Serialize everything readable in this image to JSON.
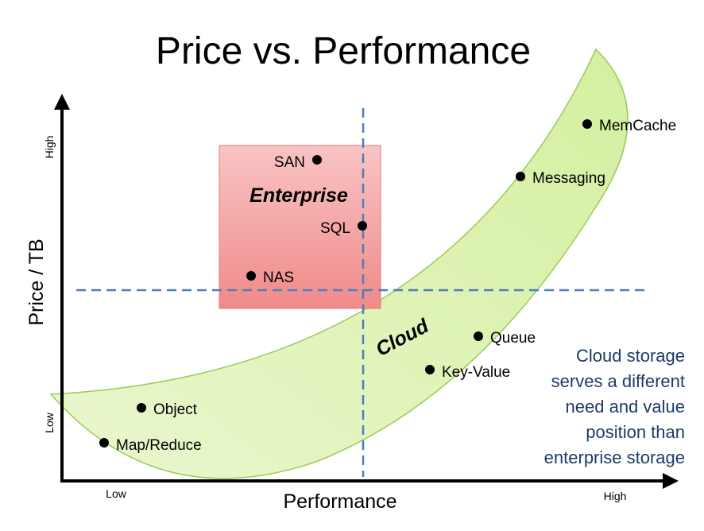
{
  "title": "Price vs. Performance",
  "x_axis": {
    "title": "Performance",
    "low": "Low",
    "high": "High"
  },
  "y_axis": {
    "title": "Price / TB",
    "low": "Low",
    "high": "High"
  },
  "regions": {
    "enterprise": "Enterprise",
    "cloud": "Cloud"
  },
  "points": [
    {
      "label": "SAN",
      "region": "enterprise"
    },
    {
      "label": "SQL",
      "region": "enterprise"
    },
    {
      "label": "NAS",
      "region": "enterprise"
    },
    {
      "label": "MemCache",
      "region": "cloud"
    },
    {
      "label": "Messaging",
      "region": "cloud"
    },
    {
      "label": "Queue",
      "region": "cloud"
    },
    {
      "label": "Key-Value",
      "region": "cloud"
    },
    {
      "label": "Object",
      "region": "cloud"
    },
    {
      "label": "Map/Reduce",
      "region": "cloud"
    }
  ],
  "note_lines": [
    "Cloud storage",
    "serves a different",
    "need and value",
    "position than",
    "enterprise storage"
  ],
  "colors": {
    "enterprise_fill_top": "#f6b0b0",
    "enterprise_fill_bottom": "#f28c8c",
    "cloud_fill": "#dff3b8",
    "cloud_stroke": "#9acb5a",
    "divider": "#4f7fb8",
    "note": "#1f3a66"
  }
}
